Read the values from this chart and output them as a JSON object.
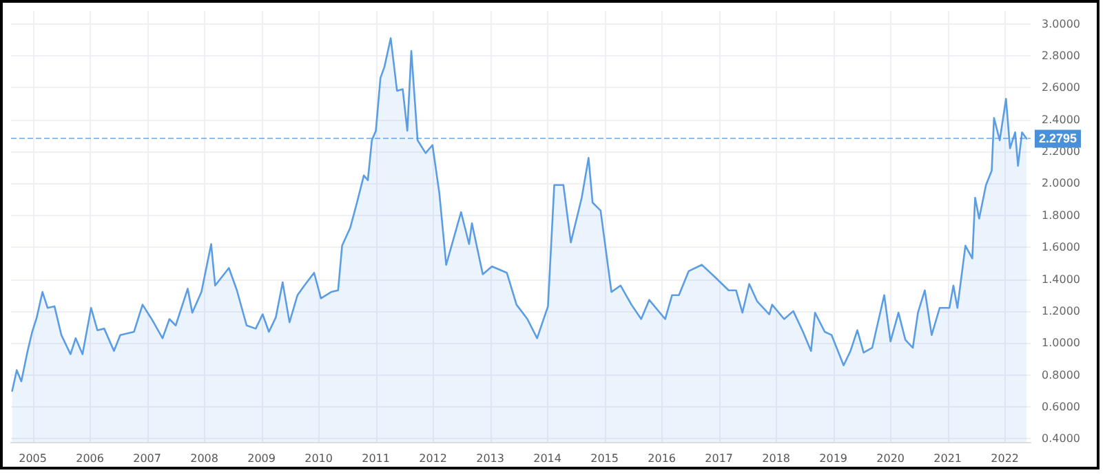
{
  "chart_data": {
    "type": "area",
    "color": "#5a9de4",
    "marker": "none",
    "line_style": "solid",
    "grid": true,
    "x": [
      2004.64,
      2004.72,
      2004.8,
      2004.91,
      2004.99,
      2005.07,
      2005.17,
      2005.26,
      2005.38,
      2005.5,
      2005.66,
      2005.75,
      2005.87,
      2006.02,
      2006.13,
      2006.25,
      2006.42,
      2006.53,
      2006.77,
      2006.92,
      2007.08,
      2007.27,
      2007.39,
      2007.5,
      2007.71,
      2007.79,
      2007.95,
      2008.12,
      2008.19,
      2008.43,
      2008.57,
      2008.74,
      2008.9,
      2009.02,
      2009.13,
      2009.25,
      2009.37,
      2009.49,
      2009.63,
      2009.75,
      2009.92,
      2010.04,
      2010.22,
      2010.34,
      2010.41,
      2010.55,
      2010.67,
      2010.79,
      2010.86,
      2010.93,
      2011.0,
      2011.08,
      2011.15,
      2011.26,
      2011.37,
      2011.47,
      2011.55,
      2011.62,
      2011.73,
      2011.87,
      2011.99,
      2012.11,
      2012.23,
      2012.49,
      2012.63,
      2012.68,
      2012.87,
      2013.03,
      2013.29,
      2013.46,
      2013.65,
      2013.82,
      2014.01,
      2014.12,
      2014.28,
      2014.41,
      2014.6,
      2014.72,
      2014.79,
      2014.93,
      2015.12,
      2015.28,
      2015.47,
      2015.64,
      2015.78,
      2016.06,
      2016.18,
      2016.3,
      2016.47,
      2016.7,
      2016.94,
      2017.17,
      2017.3,
      2017.41,
      2017.53,
      2017.67,
      2017.88,
      2017.93,
      2018.14,
      2018.3,
      2018.47,
      2018.61,
      2018.68,
      2018.85,
      2018.97,
      2019.18,
      2019.3,
      2019.42,
      2019.53,
      2019.68,
      2019.89,
      2020.0,
      2020.14,
      2020.26,
      2020.39,
      2020.48,
      2020.6,
      2020.72,
      2020.86,
      2021.03,
      2021.1,
      2021.17,
      2021.31,
      2021.43,
      2021.48,
      2021.55,
      2021.67,
      2021.77,
      2021.81,
      2021.91,
      2022.02,
      2022.09,
      2022.18,
      2022.23,
      2022.3,
      2022.38
    ],
    "values": [
      0.7,
      0.83,
      0.76,
      0.95,
      1.07,
      1.16,
      1.32,
      1.22,
      1.23,
      1.05,
      0.93,
      1.03,
      0.93,
      1.22,
      1.08,
      1.09,
      0.95,
      1.05,
      1.07,
      1.24,
      1.15,
      1.03,
      1.15,
      1.11,
      1.34,
      1.19,
      1.32,
      1.62,
      1.36,
      1.47,
      1.33,
      1.11,
      1.09,
      1.18,
      1.07,
      1.16,
      1.38,
      1.13,
      1.3,
      1.36,
      1.44,
      1.28,
      1.32,
      1.33,
      1.61,
      1.72,
      1.88,
      2.05,
      2.02,
      2.27,
      2.33,
      2.66,
      2.73,
      2.91,
      2.58,
      2.59,
      2.33,
      2.83,
      2.27,
      2.19,
      2.24,
      1.94,
      1.49,
      1.82,
      1.62,
      1.75,
      1.43,
      1.48,
      1.44,
      1.24,
      1.15,
      1.03,
      1.23,
      1.99,
      1.99,
      1.63,
      1.91,
      2.16,
      1.88,
      1.83,
      1.32,
      1.36,
      1.24,
      1.15,
      1.27,
      1.15,
      1.3,
      1.3,
      1.45,
      1.49,
      1.41,
      1.33,
      1.33,
      1.19,
      1.37,
      1.26,
      1.18,
      1.24,
      1.15,
      1.2,
      1.07,
      0.95,
      1.19,
      1.07,
      1.05,
      0.86,
      0.95,
      1.08,
      0.94,
      0.97,
      1.3,
      1.01,
      1.19,
      1.02,
      0.97,
      1.19,
      1.33,
      1.05,
      1.22,
      1.22,
      1.36,
      1.22,
      1.61,
      1.53,
      1.91,
      1.78,
      1.99,
      2.08,
      2.41,
      2.27,
      2.53,
      2.22,
      2.32,
      2.11,
      2.32,
      2.28
    ],
    "xlim": [
      2004.62,
      2022.45
    ],
    "xticks": [
      2005,
      2006,
      2007,
      2008,
      2009,
      2010,
      2011,
      2012,
      2013,
      2014,
      2015,
      2016,
      2017,
      2018,
      2019,
      2020,
      2021,
      2022
    ],
    "ylim": [
      0.38,
      3.08
    ],
    "yticks": [
      {
        "value": 0.4,
        "label": "0.4000"
      },
      {
        "value": 0.6,
        "label": "0.6000"
      },
      {
        "value": 0.8,
        "label": "0.8000"
      },
      {
        "value": 1.0,
        "label": "1.0000"
      },
      {
        "value": 1.2,
        "label": "1.2000"
      },
      {
        "value": 1.4,
        "label": "1.4000"
      },
      {
        "value": 1.6,
        "label": "1.6000"
      },
      {
        "value": 1.8,
        "label": "1.8000"
      },
      {
        "value": 2.0,
        "label": "2.0000"
      },
      {
        "value": 2.2,
        "label": "2.2000"
      },
      {
        "value": 2.4,
        "label": "2.4000"
      },
      {
        "value": 2.6,
        "label": "2.6000"
      },
      {
        "value": 2.8,
        "label": "2.8000"
      },
      {
        "value": 3.0,
        "label": "3.0000"
      }
    ],
    "ref_lines": [
      {
        "axis": "y",
        "value": 2.2795,
        "label": "2.2795",
        "color": "#4a90d9",
        "line_style": "dashed"
      }
    ]
  }
}
